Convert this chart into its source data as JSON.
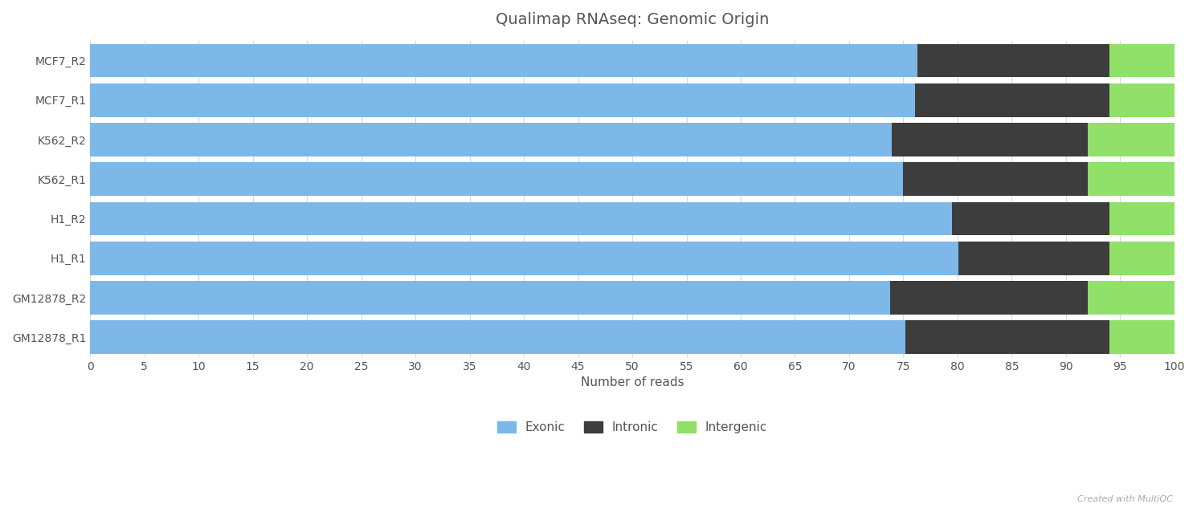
{
  "title": "Qualimap RNAseq: Genomic Origin",
  "xlabel": "Number of reads",
  "samples": [
    "GM12878_R1",
    "GM12878_R2",
    "H1_R1",
    "H1_R2",
    "K562_R1",
    "K562_R2",
    "MCF7_R1",
    "MCF7_R2"
  ],
  "exonic": [
    75.2,
    73.8,
    80.1,
    79.5,
    75.0,
    73.9,
    76.1,
    76.3
  ],
  "intronic": [
    18.8,
    18.2,
    13.9,
    14.5,
    17.0,
    18.1,
    17.9,
    17.7
  ],
  "intergenic": [
    6.0,
    8.0,
    6.0,
    6.0,
    8.0,
    8.0,
    6.0,
    6.0
  ],
  "exonic_color": "#7db8e8",
  "intronic_color": "#3d3d3d",
  "intergenic_color": "#90e06a",
  "bg_color": "#ffffff",
  "title_color": "#555555",
  "label_color": "#555555",
  "tick_color": "#555555",
  "grid_color": "#d8d8d8",
  "xlim": [
    0,
    100
  ],
  "xticks": [
    0,
    5,
    10,
    15,
    20,
    25,
    30,
    35,
    40,
    45,
    50,
    55,
    60,
    65,
    70,
    75,
    80,
    85,
    90,
    95,
    100
  ],
  "bar_height": 0.85,
  "figsize": [
    14.9,
    6.33
  ],
  "dpi": 100,
  "legend_labels": [
    "Exonic",
    "Intronic",
    "Intergenic"
  ],
  "watermark": "Created with MultiQC"
}
